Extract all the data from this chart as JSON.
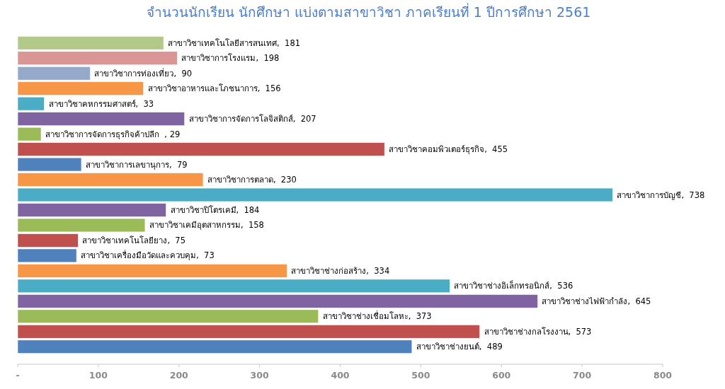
{
  "chart_data": {
    "type": "bar",
    "orientation": "horizontal",
    "title": "จำนวนนักเรียน นักศึกษา แบ่งตามสาขาวิชา ภาคเรียนที่ 1 ปีการศึกษา 2561",
    "categories": [
      null,
      null,
      null,
      null,
      null,
      null,
      null,
      null,
      null,
      null,
      null,
      null,
      null,
      null,
      null,
      null,
      null,
      null,
      null,
      null,
      null
    ],
    "values": [
      181,
      198,
      90,
      156,
      33,
      207,
      29,
      455,
      79,
      230,
      738,
      184,
      158,
      75,
      73,
      334,
      536,
      645,
      373,
      573,
      489
    ],
    "value_labels": [
      "สาขาวิชาเทคโนโลยีสารสนเทศ,  181",
      "สาขาวิชาการโรงแรม,  198",
      "สาขาวิชาการท่องเที่ยว,  90",
      "สาขาวิชาอาหารและโภชนาการ,  156",
      "สาขาวิชาคหกรรมศาสตร์,  33",
      "สาขาวิชาการจัดการโลจิสติกส์,  207",
      "สาขาวิชาการจัดการธุรกิจค้าปลีก  , 29",
      "สาขาวิชาคอมพิวเตอร์ธุรกิจ,  455",
      "สาขาวิชาการเลขานุการ,  79",
      "สาขาวิชาการตลาด,  230",
      "สาขาวิชาการบัญชี,  738",
      "สาขาวิชาปิโตรเคมี,  184",
      "สาขาวิชาเคมีอุตสาหกรรม,  158",
      "สาขาวิชาเทคโนโลยียาง,  75",
      "สาขาวิชาเครื่องมือวัดและควบคุม,  73",
      "สาขาวิชาช่างก่อสร้าง,  334",
      "สาขาวิชาช่างอิเล็กทรอนิกส์,  536",
      "สาขาวิชาช่างไฟฟ้ากำลัง,  645",
      "สาขาวิชาช่างเชื่อมโลหะ,  373",
      "สาขาวิชาช่างกลโรงงาน,  573",
      "สาขาวิชาช่างยนต์,  489"
    ],
    "colors": [
      "#b3c98a",
      "#d99694",
      "#95a9cb",
      "#f79646",
      "#4bacc6",
      "#8064a2",
      "#9bbb59",
      "#c0504d",
      "#4f81bd",
      "#f79646",
      "#4bacc6",
      "#8064a2",
      "#9bbb59",
      "#c0504d",
      "#4f81bd",
      "#f79646",
      "#4bacc6",
      "#8064a2",
      "#9bbb59",
      "#c0504d",
      "#4f81bd"
    ],
    "xlim": [
      0,
      800
    ],
    "xticks": [
      {
        "value": 0,
        "label": "-"
      },
      100,
      200,
      300,
      400,
      500,
      600,
      700,
      800
    ]
  }
}
